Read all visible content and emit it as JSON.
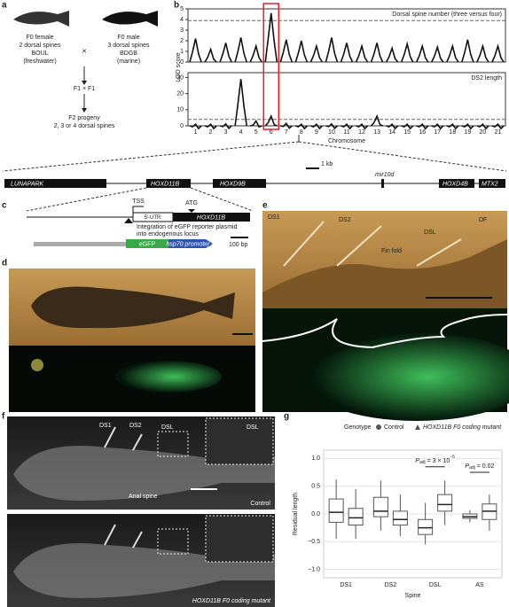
{
  "panel_labels": [
    "a",
    "b",
    "c",
    "d",
    "e",
    "f",
    "g"
  ],
  "cross": {
    "female": [
      "F0 female",
      "2 dorsal spines",
      "BOUL",
      "(freshwater)"
    ],
    "male": [
      "F0 male",
      "3 dorsal spines",
      "BDGB",
      "(marine)"
    ],
    "symbol": "×",
    "f1": "F1 × F1",
    "f2": [
      "F2 progeny",
      "2, 3 or 4 dorsal spines"
    ]
  },
  "chart_data": [
    {
      "type": "line",
      "title": "Dorsal spine number (three versus four)",
      "ylabel": "LOD score",
      "values": [
        2.2,
        1.2,
        1.8,
        2.3,
        1.5,
        4.6,
        2.1,
        2.0,
        1.5,
        2.3,
        1.8,
        1.5,
        1.8,
        1.3,
        1.7,
        1.5,
        1.4,
        1.5,
        2.1,
        1.5,
        1.5
      ],
      "threshold": 3.9,
      "ylim": [
        0,
        5
      ],
      "yticks": [
        0,
        1,
        2,
        3,
        4,
        5
      ],
      "color": "#111"
    },
    {
      "type": "line",
      "title": "DS2 length",
      "xlabel": "Chromosome",
      "categories": [
        "1",
        "2",
        "3",
        "4",
        "5",
        "6",
        "7",
        "8",
        "9",
        "10",
        "11",
        "12",
        "13",
        "14",
        "15",
        "16",
        "17",
        "18",
        "19",
        "20",
        "21"
      ],
      "values": [
        1,
        1,
        1.2,
        29,
        3,
        6,
        1.5,
        1,
        1,
        1.2,
        1,
        1,
        6,
        1,
        1,
        1,
        1,
        1,
        1,
        1,
        1
      ],
      "threshold": 4,
      "ylim": [
        0,
        33
      ],
      "yticks": [
        0,
        10,
        20,
        30
      ],
      "color": "#111"
    },
    {
      "type": "box",
      "legend_title": "Genotype",
      "xlabel": "Spine",
      "ylabel": "Residual length",
      "categories": [
        "DS1",
        "DS2",
        "DSL",
        "AS"
      ],
      "ylim": [
        -1.15,
        1.15
      ],
      "yticks": [
        {
          "value": -1,
          "label": "−1.0"
        },
        {
          "value": -0.5,
          "label": "−0.5"
        },
        {
          "value": 0,
          "label": "0.0"
        },
        {
          "value": 0.5,
          "label": "0.5"
        },
        {
          "value": 1,
          "label": "1.0"
        }
      ],
      "series": [
        {
          "name": "Control",
          "marker": "circle",
          "color": "#555",
          "whislo": [
            -0.45,
            -0.3,
            -0.55,
            -0.15
          ],
          "q1": [
            -0.15,
            -0.05,
            -0.37,
            -0.08
          ],
          "median": [
            0.03,
            0.05,
            -0.25,
            -0.05
          ],
          "q3": [
            0.27,
            0.3,
            -0.1,
            0
          ],
          "whishi": [
            0.62,
            0.6,
            0.2,
            0.07
          ]
        },
        {
          "name": "HOXD11B F0 coding mutant",
          "marker": "triangle",
          "color": "#555",
          "whislo": [
            -0.45,
            -0.4,
            -0.2,
            -0.3
          ],
          "q1": [
            -0.2,
            -0.2,
            0.05,
            -0.1
          ],
          "median": [
            -0.07,
            -0.1,
            0.17,
            0.05
          ],
          "q3": [
            0.1,
            0.05,
            0.35,
            0.18
          ],
          "whishi": [
            0.45,
            0.35,
            0.6,
            0.35
          ]
        }
      ],
      "annotations": [
        {
          "category": 2,
          "p": "P",
          "sub": "adj",
          "rest": " = 3 × 10",
          "sup": "−5"
        },
        {
          "category": 3,
          "p": "P",
          "sub": "adj",
          "rest": " = 0.02",
          "sup": ""
        }
      ]
    }
  ],
  "gene_map": {
    "genes": [
      "LUNAPARK",
      "HOXD11B",
      "HOXD9B",
      "HOXD4B",
      "MTX2"
    ],
    "mir": "mir10d",
    "scale": "1 kb"
  },
  "construct": {
    "tss": "TSS",
    "atg": "ATG",
    "utr": "5′-UTR",
    "gene": "HOXD11B",
    "note": [
      "Integration of eGFP reporter plasmid",
      "into endogenous locus"
    ],
    "egfp": "eGFP",
    "promoter": "hsp70 promoter",
    "scale": "100 bp"
  },
  "photo_e": [
    "DS1",
    "DS2",
    "DSL",
    "DF",
    "Fin fold"
  ],
  "photo_f": {
    "labels": [
      "DS1",
      "DS2",
      "DSL",
      "DSL",
      "Anal spine"
    ],
    "control": "Control",
    "mutant": "HOXD11B F0 coding mutant"
  }
}
